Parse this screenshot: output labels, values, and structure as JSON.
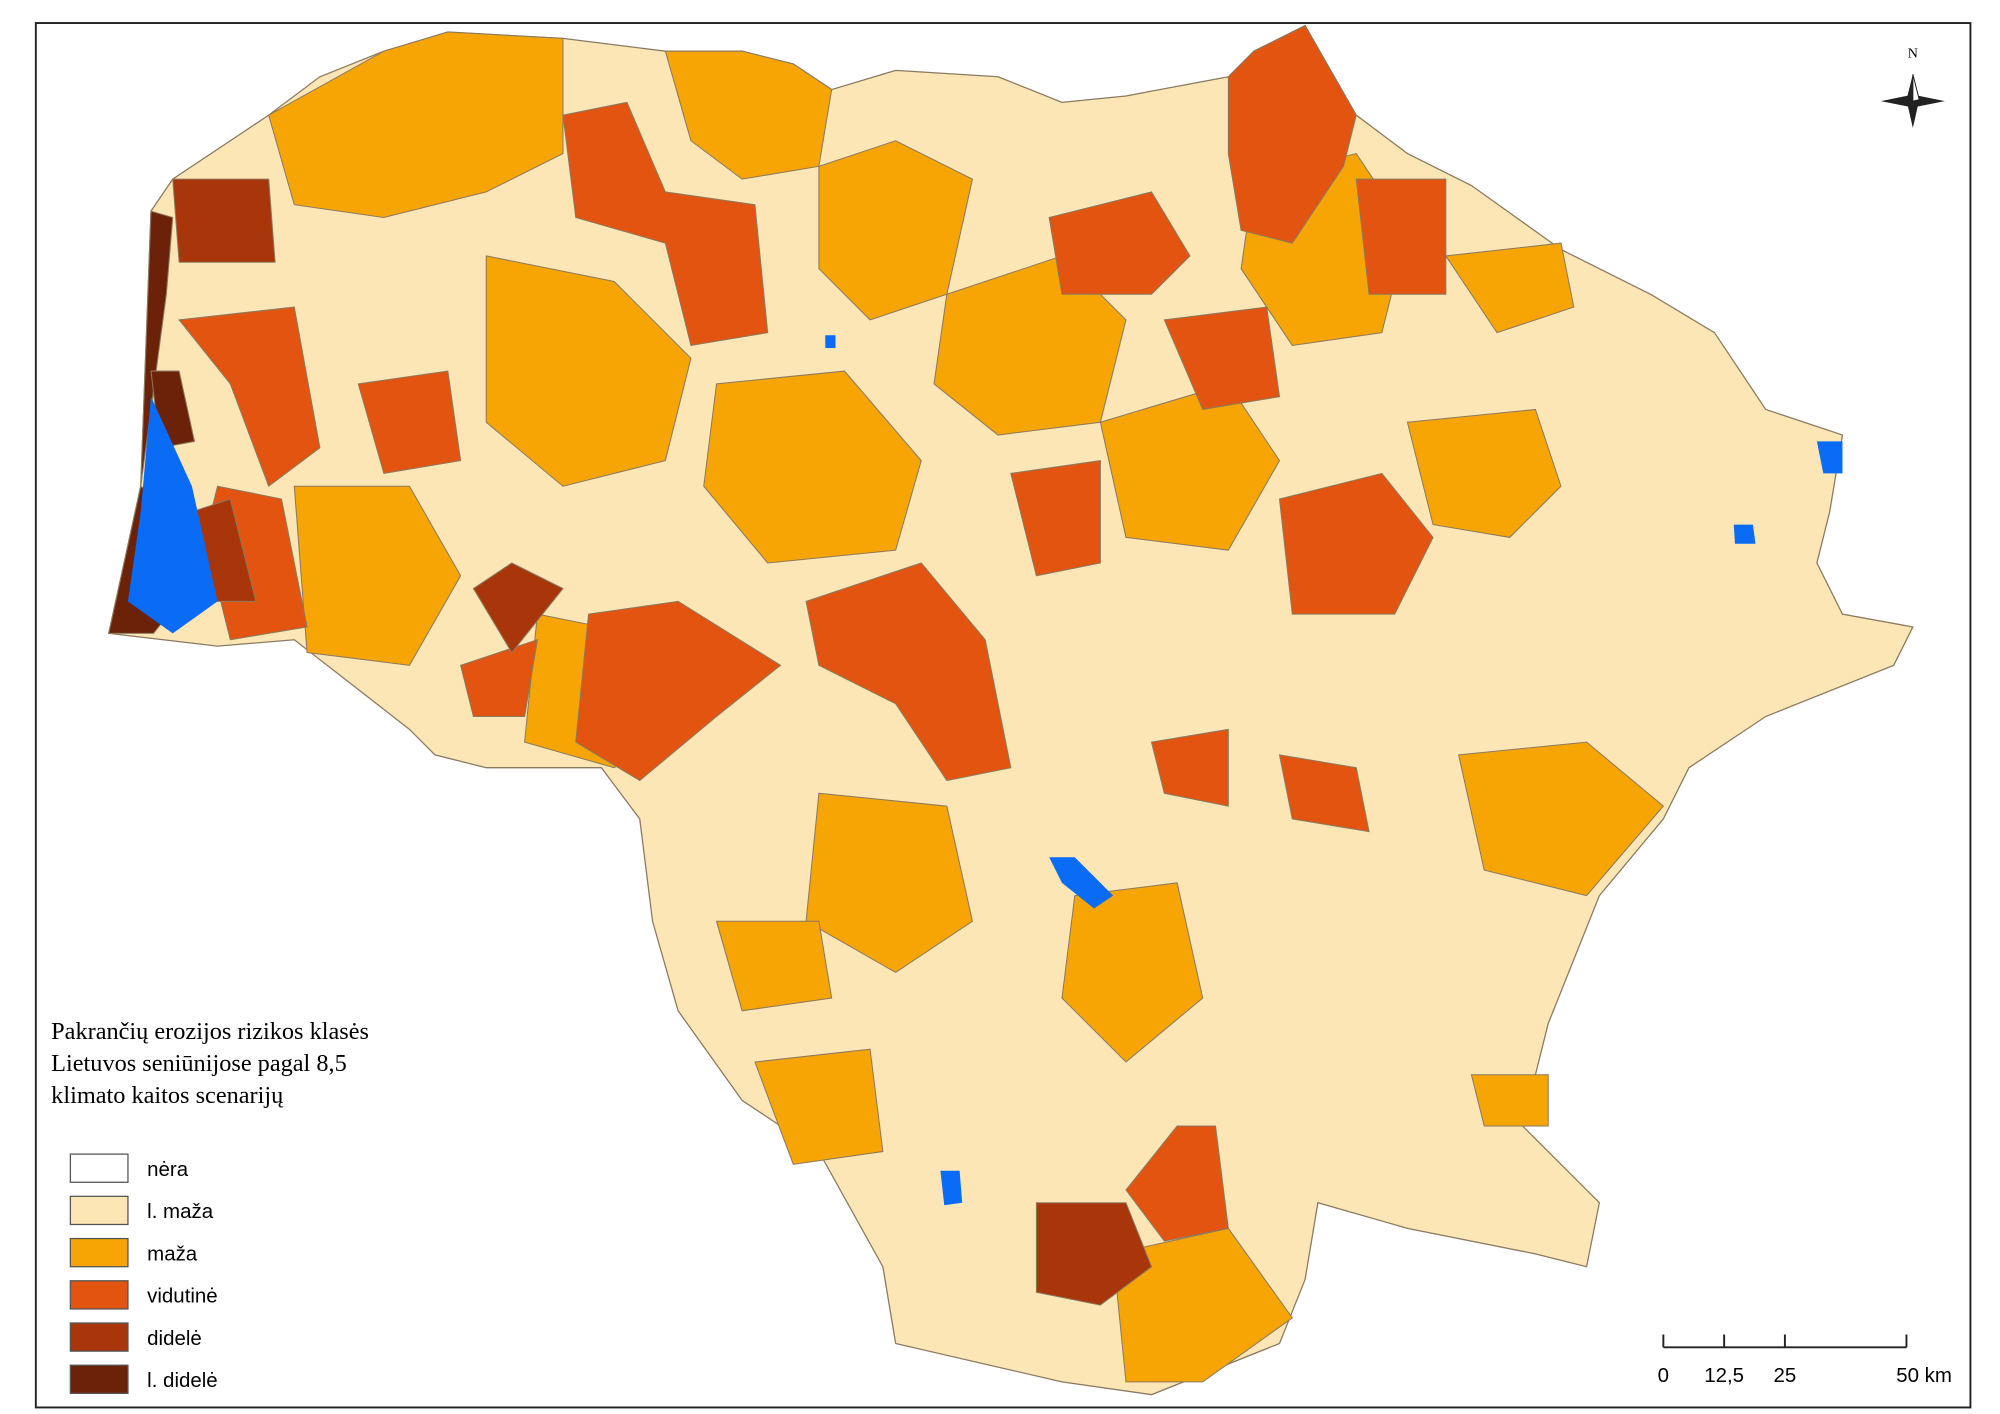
{
  "map": {
    "title_lines": [
      "Pakrančių erozijos rizikos klasės",
      "Lietuvos seniūnijose pagal 8,5",
      "klimato kaitos scenarijų"
    ],
    "legend": {
      "items": [
        {
          "label": "nėra",
          "color": "#ffffff"
        },
        {
          "label": "l. maža",
          "color": "#fde6b6"
        },
        {
          "label": "maža",
          "color": "#f6a505"
        },
        {
          "label": "vidutinė",
          "color": "#e2540f"
        },
        {
          "label": "didelė",
          "color": "#a9360b"
        },
        {
          "label": "l. didelė",
          "color": "#6c2208"
        }
      ]
    },
    "water_color": "#0a6cf5",
    "north_label": "N",
    "scale_bar": {
      "ticks": [
        {
          "value": 0,
          "label": "0"
        },
        {
          "value": 12.5,
          "label": "12,5"
        },
        {
          "value": 25,
          "label": "25"
        },
        {
          "value": 50,
          "label": "50 km"
        }
      ]
    }
  }
}
